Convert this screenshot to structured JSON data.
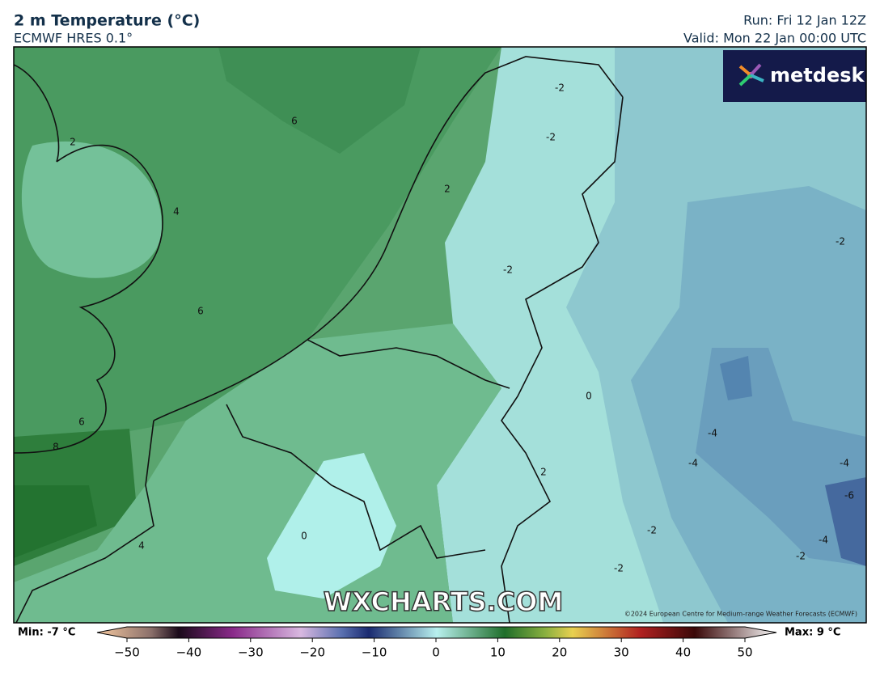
{
  "header": {
    "title": "2 m Temperature (°C)",
    "model": "ECMWF HRES 0.1°",
    "run": "Run: Fri 12 Jan 12Z",
    "valid": "Valid: Mon 22 Jan 00:00 UTC"
  },
  "logo": "metdesk",
  "watermark": "WXCHARTS.COM",
  "copyright": "©2024 European Centre for Medium-range Weather Forecasts (ECMWF)",
  "contour_labels": [
    "6",
    "2",
    "4",
    "6",
    "6",
    "8",
    "4",
    "0",
    "2",
    "-2",
    "-2",
    "-2",
    "0",
    "-2",
    "-4",
    "-4",
    "2",
    "-4",
    "-6",
    "-4",
    "-2",
    "-2",
    "-2"
  ],
  "colorbar": {
    "min_label": "Min: -7 °C",
    "max_label": "Max: 9 °C",
    "ticks": [
      {
        "value": -50,
        "label": "−50"
      },
      {
        "value": -40,
        "label": "−40"
      },
      {
        "value": -30,
        "label": "−30"
      },
      {
        "value": -20,
        "label": "−20"
      },
      {
        "value": -10,
        "label": "−10"
      },
      0,
      10,
      20,
      30,
      40,
      50
    ],
    "range": [
      -50,
      50
    ]
  }
}
